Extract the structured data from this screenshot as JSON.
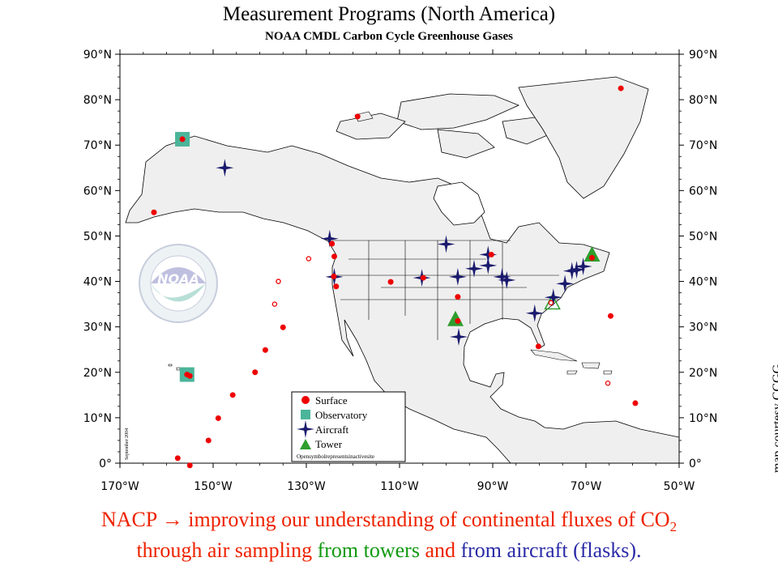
{
  "header": {
    "title": "Measurement Programs (North America)",
    "subtitle": "NOAA CMDL Carbon Cycle Greenhouse Gases"
  },
  "axes": {
    "lat_labels": [
      "90°N",
      "80°N",
      "70°N",
      "60°N",
      "50°N",
      "40°N",
      "30°N",
      "20°N",
      "10°N",
      "0°"
    ],
    "lon_labels": [
      "170°W",
      "150°W",
      "130°W",
      "110°W",
      "90°W",
      "70°W",
      "50°W"
    ]
  },
  "legend": {
    "surface": "Surface",
    "observatory": "Observatory",
    "aircraft": "Aircraft",
    "tower": "Tower",
    "note": "Opensymbolrepresentsinactivesite"
  },
  "side_note": "September 2004",
  "credit": "map courtesy CCGG",
  "caption": {
    "line1_a": "NACP",
    "arrow": "→",
    "line1_b": " improving our understanding of continental fluxes of CO",
    "line1_sub": "2",
    "line2_a": "through air sampling ",
    "line2_b": "from towers",
    "line2_c": " and ",
    "line2_d": "from aircraft (flasks)."
  },
  "logo": {
    "text": "NOAA",
    "ring_text": "NATIONAL OCEANIC AND ATMOSPHERIC ADMINISTRATION",
    "ring_bottom": "U.S. DEPARTMENT OF COMMERCE"
  },
  "colors": {
    "land": "#efefef",
    "surface": "#ee0000",
    "observatory": "#4bb59a",
    "aircraft": "#1a1a6e",
    "tower": "#2e9e2e",
    "caption_red": "#ee2200",
    "caption_green": "#119911",
    "caption_blue": "#2a2aa8"
  },
  "sites": {
    "surface": [
      [
        -156.6,
        71.3
      ],
      [
        -162.7,
        55.2
      ],
      [
        -119,
        76.3
      ],
      [
        -62.5,
        82.5
      ],
      [
        -124.1,
        41.1
      ],
      [
        -124.5,
        48.3
      ],
      [
        -124,
        45.5
      ],
      [
        -123.6,
        38.9
      ],
      [
        -111.9,
        39.9
      ],
      [
        -104.9,
        40.8
      ],
      [
        -97.5,
        36.6
      ],
      [
        -97.5,
        31.3
      ],
      [
        -90.3,
        45.9
      ],
      [
        -80.2,
        25.7
      ],
      [
        -68.7,
        45.2
      ],
      [
        -64.7,
        32.4
      ],
      [
        -59.4,
        13.2
      ],
      [
        -155.6,
        19.5
      ],
      [
        -155,
        19.2
      ],
      [
        -135,
        29.9
      ],
      [
        -138.8,
        24.9
      ],
      [
        -141,
        20
      ],
      [
        -145.8,
        15
      ],
      [
        -148.9,
        9.9
      ],
      [
        -151,
        5
      ],
      [
        -157.6,
        1.1
      ],
      [
        -155,
        -0.5
      ]
    ],
    "surface_inactive": [
      [
        -129.5,
        45
      ],
      [
        -136,
        40
      ],
      [
        -136.8,
        35
      ],
      [
        -77.5,
        35.3
      ],
      [
        -65.3,
        17.6
      ]
    ],
    "observatory": [
      [
        -156.6,
        71.3
      ],
      [
        -155.6,
        19.5
      ]
    ],
    "aircraft": [
      [
        -147.5,
        65
      ],
      [
        -125,
        49.4
      ],
      [
        -124,
        41
      ],
      [
        -105.2,
        40.8
      ],
      [
        -100,
        48.2
      ],
      [
        -97.5,
        41
      ],
      [
        -97.3,
        27.8
      ],
      [
        -94,
        42.8
      ],
      [
        -91,
        43.5
      ],
      [
        -91,
        45.9
      ],
      [
        -88,
        41
      ],
      [
        -87,
        40.3
      ],
      [
        -81,
        33
      ],
      [
        -77,
        36.5
      ],
      [
        -74.5,
        39.5
      ],
      [
        -73,
        42.3
      ],
      [
        -72,
        42.6
      ],
      [
        -70.6,
        43.3
      ]
    ],
    "tower": [
      [
        -98,
        31.6
      ],
      [
        -68.7,
        45.8
      ]
    ],
    "tower_inactive": [
      [
        -77.2,
        35.2
      ]
    ]
  }
}
